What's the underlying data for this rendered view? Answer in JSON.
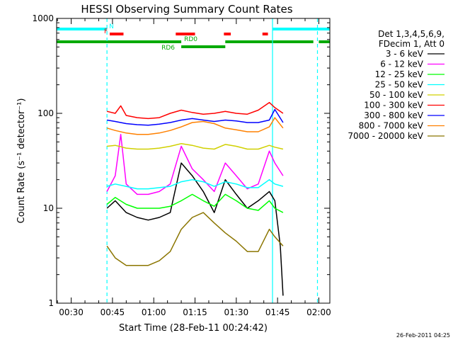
{
  "chart_data": {
    "type": "line",
    "title": "HESSI Observing Summary Count Rates",
    "xlabel": "Start Time (28-Feb-11 00:24:42)",
    "ylabel": "Count Rate (s⁻¹ detector⁻¹)",
    "x_scale": "time",
    "y_scale": "log",
    "xlim": [
      "00:24:42",
      "02:04:00"
    ],
    "ylim": [
      1,
      1000
    ],
    "x_ticks": [
      "00:30",
      "00:45",
      "01:00",
      "01:15",
      "01:30",
      "01:45",
      "02:00"
    ],
    "y_ticks": [
      "1",
      "10",
      "100",
      "1000"
    ],
    "grid": false,
    "legend_position": "right",
    "legend_header": [
      "Det 1,3,4,5,6,9,",
      "FDecim 1, Att 0"
    ],
    "footer_timestamp": "26-Feb-2011 04:25",
    "series": [
      {
        "name": "3 - 6 keV",
        "color": "#000000",
        "x": [
          "00:43",
          "00:46",
          "00:50",
          "00:54",
          "00:58",
          "01:02",
          "01:06",
          "01:10",
          "01:14",
          "01:18",
          "01:22",
          "01:26",
          "01:30",
          "01:34",
          "01:38",
          "01:42",
          "01:44",
          "01:46",
          "01:47"
        ],
        "y": [
          10,
          12,
          9,
          8,
          7.5,
          8,
          9,
          30,
          22,
          15,
          9,
          20,
          14,
          10,
          12,
          15,
          12,
          4,
          1.2
        ]
      },
      {
        "name": "6 - 12 keV",
        "color": "#ff00ff",
        "x": [
          "00:43",
          "00:46",
          "00:48",
          "00:50",
          "00:54",
          "00:58",
          "01:02",
          "01:06",
          "01:10",
          "01:14",
          "01:18",
          "01:22",
          "01:26",
          "01:30",
          "01:34",
          "01:38",
          "01:42",
          "01:44",
          "01:47"
        ],
        "y": [
          15,
          22,
          60,
          18,
          14,
          14,
          15,
          18,
          45,
          26,
          20,
          15,
          30,
          22,
          16,
          18,
          40,
          30,
          22
        ]
      },
      {
        "name": "12 - 25 keV",
        "color": "#00ff00",
        "x": [
          "00:43",
          "00:46",
          "00:50",
          "00:54",
          "00:58",
          "01:02",
          "01:06",
          "01:10",
          "01:14",
          "01:18",
          "01:22",
          "01:26",
          "01:30",
          "01:34",
          "01:38",
          "01:42",
          "01:44",
          "01:47"
        ],
        "y": [
          11,
          13,
          11,
          10,
          10,
          10,
          10.5,
          12,
          14,
          12,
          10.5,
          14,
          12,
          10,
          9.5,
          12,
          10,
          9
        ]
      },
      {
        "name": "25 - 50 keV",
        "color": "#00ffff",
        "x": [
          "00:43",
          "00:46",
          "00:50",
          "00:54",
          "00:58",
          "01:02",
          "01:06",
          "01:10",
          "01:14",
          "01:18",
          "01:22",
          "01:26",
          "01:30",
          "01:34",
          "01:38",
          "01:42",
          "01:44",
          "01:47"
        ],
        "y": [
          17,
          18,
          17,
          16,
          16,
          16.5,
          17,
          19,
          20,
          19,
          17,
          19,
          18,
          16.5,
          16.5,
          20,
          18,
          17
        ]
      },
      {
        "name": "50 - 100 keV",
        "color": "#d0d000",
        "x": [
          "00:43",
          "00:46",
          "00:50",
          "00:54",
          "00:58",
          "01:02",
          "01:06",
          "01:10",
          "01:14",
          "01:18",
          "01:22",
          "01:26",
          "01:30",
          "01:34",
          "01:38",
          "01:42",
          "01:44",
          "01:47"
        ],
        "y": [
          45,
          46,
          43,
          42,
          42,
          43,
          45,
          48,
          46,
          43,
          42,
          47,
          45,
          42,
          42,
          46,
          44,
          42
        ]
      },
      {
        "name": "100 - 300 keV",
        "color": "#ff0000",
        "x": [
          "00:43",
          "00:46",
          "00:48",
          "00:50",
          "00:54",
          "00:58",
          "01:02",
          "01:06",
          "01:10",
          "01:14",
          "01:18",
          "01:22",
          "01:26",
          "01:30",
          "01:34",
          "01:38",
          "01:42",
          "01:44",
          "01:47"
        ],
        "y": [
          105,
          100,
          120,
          95,
          90,
          88,
          90,
          100,
          108,
          102,
          98,
          100,
          105,
          100,
          98,
          108,
          130,
          115,
          100
        ]
      },
      {
        "name": "300 - 800 keV",
        "color": "#0000ff",
        "x": [
          "00:43",
          "00:46",
          "00:50",
          "00:54",
          "00:58",
          "01:02",
          "01:06",
          "01:10",
          "01:14",
          "01:18",
          "01:22",
          "01:26",
          "01:30",
          "01:34",
          "01:38",
          "01:42",
          "01:44",
          "01:47"
        ],
        "y": [
          85,
          82,
          78,
          76,
          75,
          77,
          80,
          85,
          88,
          85,
          82,
          85,
          83,
          80,
          80,
          85,
          110,
          80
        ]
      },
      {
        "name": "800 - 7000 keV",
        "color": "#ff8000",
        "x": [
          "00:43",
          "00:46",
          "00:50",
          "00:54",
          "00:58",
          "01:02",
          "01:06",
          "01:10",
          "01:14",
          "01:18",
          "01:22",
          "01:26",
          "01:30",
          "01:34",
          "01:38",
          "01:42",
          "01:44",
          "01:47"
        ],
        "y": [
          70,
          66,
          62,
          60,
          60,
          62,
          66,
          72,
          80,
          82,
          78,
          70,
          67,
          64,
          64,
          72,
          90,
          70
        ]
      },
      {
        "name": "7000 - 20000 keV",
        "color": "#8b7500",
        "x": [
          "00:43",
          "00:46",
          "00:50",
          "00:54",
          "00:58",
          "01:02",
          "01:06",
          "01:10",
          "01:14",
          "01:18",
          "01:22",
          "01:26",
          "01:30",
          "01:34",
          "01:38",
          "01:42",
          "01:44",
          "01:47"
        ],
        "y": [
          4,
          3,
          2.5,
          2.5,
          2.5,
          2.8,
          3.5,
          6,
          8,
          9,
          7,
          5.5,
          4.5,
          3.5,
          3.5,
          6,
          5,
          4
        ]
      }
    ],
    "vlines": [
      {
        "x": "00:43:00",
        "color": "#00ffff",
        "style": "dashed"
      },
      {
        "x": "01:43:10",
        "color": "#00ffff",
        "style": "solid"
      },
      {
        "x": "01:59:30",
        "color": "#00ffff",
        "style": "dashed"
      }
    ],
    "flag_bars": [
      {
        "label": "N",
        "color": "#00ffff",
        "level": 1,
        "intervals": [
          [
            "00:24:42",
            "00:43:00"
          ],
          [
            "01:43:10",
            "02:04:00"
          ]
        ]
      },
      {
        "label": "F",
        "color": "#ff0000",
        "level": 2,
        "intervals": [
          [
            "00:44:00",
            "00:49:00"
          ],
          [
            "01:08:00",
            "01:15:00"
          ],
          [
            "01:25:30",
            "01:28:00"
          ],
          [
            "01:39:30",
            "01:41:30"
          ]
        ]
      },
      {
        "label": "RD0",
        "color": "#00aa00",
        "level": 3,
        "intervals": [
          [
            "00:24:42",
            "01:10:00"
          ],
          [
            "01:26:00",
            "01:58:00"
          ],
          [
            "02:00:00",
            "02:04:00"
          ]
        ]
      },
      {
        "label": "RD6",
        "color": "#00aa00",
        "level": 4,
        "intervals": [
          [
            "01:10:00",
            "01:26:00"
          ]
        ]
      }
    ]
  }
}
